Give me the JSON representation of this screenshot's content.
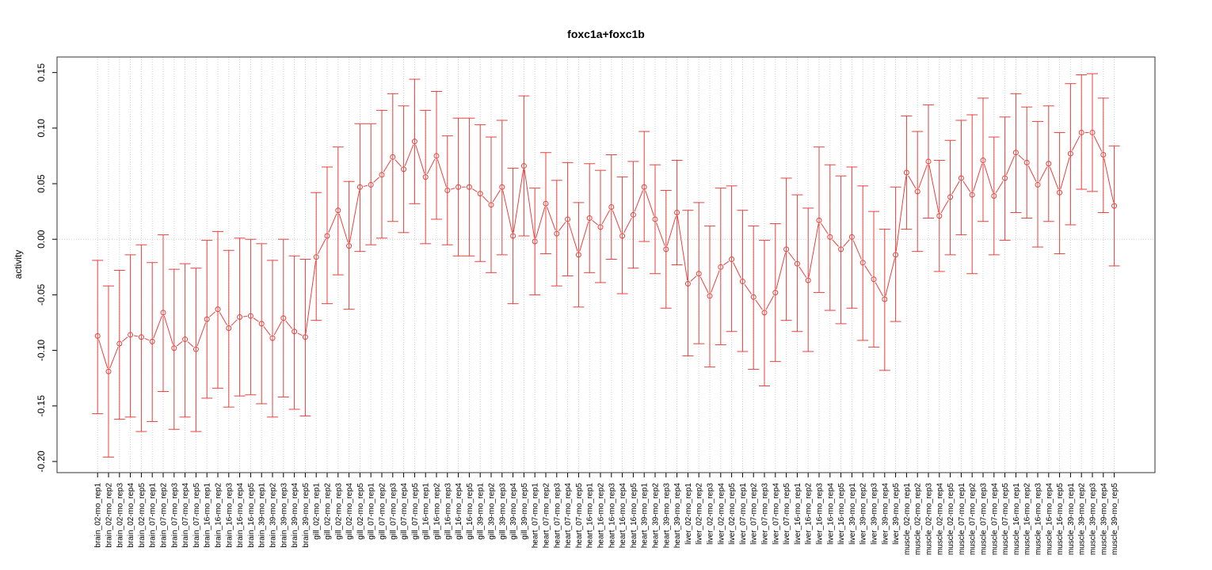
{
  "chart_data": {
    "type": "line",
    "title": "foxc1a+foxc1b",
    "xlabel": "",
    "ylabel": "activity",
    "ylim": [
      -0.21,
      0.164
    ],
    "yticks": [
      "-0.20",
      "-0.15",
      "-0.10",
      "-0.05",
      "0.00",
      "0.05",
      "0.10",
      "0.15"
    ],
    "grid": true,
    "zero_line": true,
    "series_color": "#e8413c",
    "categories": [
      "brain_02-mo_rep1",
      "brain_02-mo_rep2",
      "brain_02-mo_rep3",
      "brain_02-mo_rep4",
      "brain_02-mo_rep5",
      "brain_07-mo_rep1",
      "brain_07-mo_rep2",
      "brain_07-mo_rep3",
      "brain_07-mo_rep4",
      "brain_07-mo_rep5",
      "brain_16-mo_rep1",
      "brain_16-mo_rep2",
      "brain_16-mo_rep3",
      "brain_16-mo_rep4",
      "brain_16-mo_rep5",
      "brain_39-mo_rep1",
      "brain_39-mo_rep2",
      "brain_39-mo_rep3",
      "brain_39-mo_rep4",
      "brain_39-mo_rep5",
      "gill_02-mo_rep1",
      "gill_02-mo_rep2",
      "gill_02-mo_rep3",
      "gill_02-mo_rep4",
      "gill_02-mo_rep5",
      "gill_07-mo_rep1",
      "gill_07-mo_rep2",
      "gill_07-mo_rep3",
      "gill_07-mo_rep4",
      "gill_07-mo_rep5",
      "gill_16-mo_rep1",
      "gill_16-mo_rep2",
      "gill_16-mo_rep3",
      "gill_16-mo_rep4",
      "gill_16-mo_rep5",
      "gill_39-mo_rep1",
      "gill_39-mo_rep2",
      "gill_39-mo_rep3",
      "gill_39-mo_rep4",
      "gill_39-mo_rep5",
      "heart_07-mo_rep1",
      "heart_07-mo_rep2",
      "heart_07-mo_rep3",
      "heart_07-mo_rep4",
      "heart_07-mo_rep5",
      "heart_16-mo_rep1",
      "heart_16-mo_rep2",
      "heart_16-mo_rep3",
      "heart_16-mo_rep4",
      "heart_16-mo_rep5",
      "heart_39-mo_rep1",
      "heart_39-mo_rep2",
      "heart_39-mo_rep3",
      "heart_39-mo_rep4",
      "liver_02-mo_rep1",
      "liver_02-mo_rep2",
      "liver_02-mo_rep3",
      "liver_02-mo_rep4",
      "liver_02-mo_rep5",
      "liver_07-mo_rep1",
      "liver_07-mo_rep2",
      "liver_07-mo_rep3",
      "liver_07-mo_rep4",
      "liver_07-mo_rep5",
      "liver_16-mo_rep1",
      "liver_16-mo_rep2",
      "liver_16-mo_rep3",
      "liver_16-mo_rep4",
      "liver_16-mo_rep5",
      "liver_39-mo_rep1",
      "liver_39-mo_rep2",
      "liver_39-mo_rep3",
      "liver_39-mo_rep4",
      "liver_39-mo_rep5",
      "muscle_02-mo_rep1",
      "muscle_02-mo_rep2",
      "muscle_02-mo_rep3",
      "muscle_02-mo_rep4",
      "muscle_02-mo_rep5",
      "muscle_07-mo_rep1",
      "muscle_07-mo_rep2",
      "muscle_07-mo_rep3",
      "muscle_07-mo_rep4",
      "muscle_07-mo_rep5",
      "muscle_16-mo_rep1",
      "muscle_16-mo_rep2",
      "muscle_16-mo_rep3",
      "muscle_16-mo_rep4",
      "muscle_16-mo_rep5",
      "muscle_39-mo_rep1",
      "muscle_39-mo_rep2",
      "muscle_39-mo_rep3",
      "muscle_39-mo_rep4",
      "muscle_39-mo_rep5"
    ],
    "values": [
      -0.087,
      -0.119,
      -0.094,
      -0.086,
      -0.088,
      -0.092,
      -0.066,
      -0.098,
      -0.09,
      -0.099,
      -0.072,
      -0.063,
      -0.08,
      -0.07,
      -0.069,
      -0.076,
      -0.089,
      -0.071,
      -0.083,
      -0.088,
      -0.016,
      0.003,
      0.026,
      -0.006,
      0.047,
      0.049,
      0.058,
      0.074,
      0.063,
      0.088,
      0.056,
      0.075,
      0.044,
      0.047,
      0.047,
      0.041,
      0.031,
      0.047,
      0.003,
      0.066,
      -0.002,
      0.032,
      0.005,
      0.018,
      -0.014,
      0.019,
      0.011,
      0.029,
      0.003,
      0.022,
      0.047,
      0.018,
      -0.009,
      0.024,
      -0.04,
      -0.031,
      -0.051,
      -0.025,
      -0.018,
      -0.038,
      -0.052,
      -0.066,
      -0.048,
      -0.009,
      -0.022,
      -0.037,
      0.017,
      0.002,
      -0.009,
      0.002,
      -0.021,
      -0.036,
      -0.054,
      -0.014,
      0.06,
      0.043,
      0.07,
      0.021,
      0.038,
      0.055,
      0.04,
      0.071,
      0.039,
      0.055,
      0.078,
      0.069,
      0.049,
      0.068,
      0.042,
      0.077,
      0.096,
      0.096,
      0.076,
      0.03
    ],
    "upper": [
      -0.019,
      -0.042,
      -0.028,
      -0.014,
      -0.005,
      -0.021,
      0.004,
      -0.027,
      -0.022,
      -0.026,
      -0.001,
      0.007,
      -0.01,
      0.001,
      0.0,
      -0.004,
      -0.019,
      0.0,
      -0.015,
      -0.018,
      0.042,
      0.065,
      0.083,
      0.052,
      0.104,
      0.104,
      0.116,
      0.131,
      0.12,
      0.144,
      0.116,
      0.133,
      0.093,
      0.109,
      0.109,
      0.103,
      0.092,
      0.107,
      0.064,
      0.129,
      0.046,
      0.078,
      0.053,
      0.069,
      0.033,
      0.068,
      0.062,
      0.076,
      0.056,
      0.07,
      0.097,
      0.067,
      0.044,
      0.071,
      0.026,
      0.033,
      0.012,
      0.046,
      0.048,
      0.026,
      0.012,
      -0.001,
      0.014,
      0.055,
      0.04,
      0.028,
      0.083,
      0.067,
      0.057,
      0.065,
      0.048,
      0.025,
      0.009,
      0.047,
      0.111,
      0.097,
      0.121,
      0.071,
      0.089,
      0.107,
      0.112,
      0.127,
      0.092,
      0.11,
      0.131,
      0.119,
      0.106,
      0.12,
      0.096,
      0.14,
      0.148,
      0.149,
      0.127,
      0.084
    ],
    "lower": [
      -0.157,
      -0.196,
      -0.162,
      -0.16,
      -0.173,
      -0.164,
      -0.137,
      -0.171,
      -0.16,
      -0.173,
      -0.143,
      -0.134,
      -0.151,
      -0.141,
      -0.14,
      -0.148,
      -0.16,
      -0.142,
      -0.153,
      -0.159,
      -0.073,
      -0.058,
      -0.032,
      -0.063,
      -0.011,
      -0.005,
      0.001,
      0.016,
      0.006,
      0.032,
      -0.004,
      0.018,
      -0.005,
      -0.015,
      -0.015,
      -0.02,
      -0.03,
      -0.014,
      -0.058,
      0.003,
      -0.05,
      -0.013,
      -0.042,
      -0.033,
      -0.061,
      -0.03,
      -0.039,
      -0.018,
      -0.049,
      -0.026,
      -0.002,
      -0.031,
      -0.062,
      -0.023,
      -0.105,
      -0.094,
      -0.115,
      -0.095,
      -0.083,
      -0.101,
      -0.117,
      -0.132,
      -0.11,
      -0.073,
      -0.083,
      -0.101,
      -0.048,
      -0.064,
      -0.076,
      -0.062,
      -0.091,
      -0.097,
      -0.118,
      -0.074,
      0.009,
      -0.011,
      0.019,
      -0.029,
      -0.014,
      0.004,
      -0.031,
      0.016,
      -0.014,
      -0.001,
      0.024,
      0.019,
      -0.007,
      0.016,
      -0.013,
      0.013,
      0.045,
      0.043,
      0.024,
      -0.024
    ]
  }
}
